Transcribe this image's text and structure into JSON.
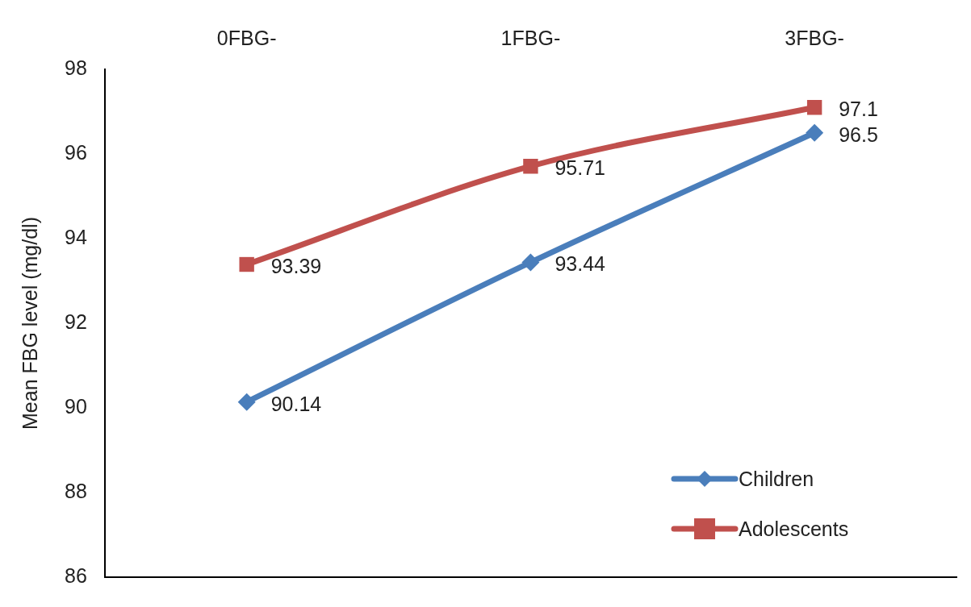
{
  "chart_data": {
    "type": "line",
    "ylabel": "Mean FBG level (mg/dl)",
    "categories": [
      "0FBG-",
      "1FBG-",
      "3FBG-"
    ],
    "series": [
      {
        "name": "Children",
        "color": "#4a7ebb",
        "marker": "diamond",
        "values": [
          90.14,
          93.44,
          96.5
        ]
      },
      {
        "name": "Adolescents",
        "color": "#c0504d",
        "marker": "square",
        "values": [
          93.39,
          95.71,
          97.1
        ]
      }
    ],
    "ylim": [
      86,
      98
    ],
    "yticks": [
      86,
      88,
      90,
      92,
      94,
      96,
      98
    ],
    "grid": false,
    "legend": "bottom right",
    "data_labels": true,
    "line_style": "solid"
  }
}
